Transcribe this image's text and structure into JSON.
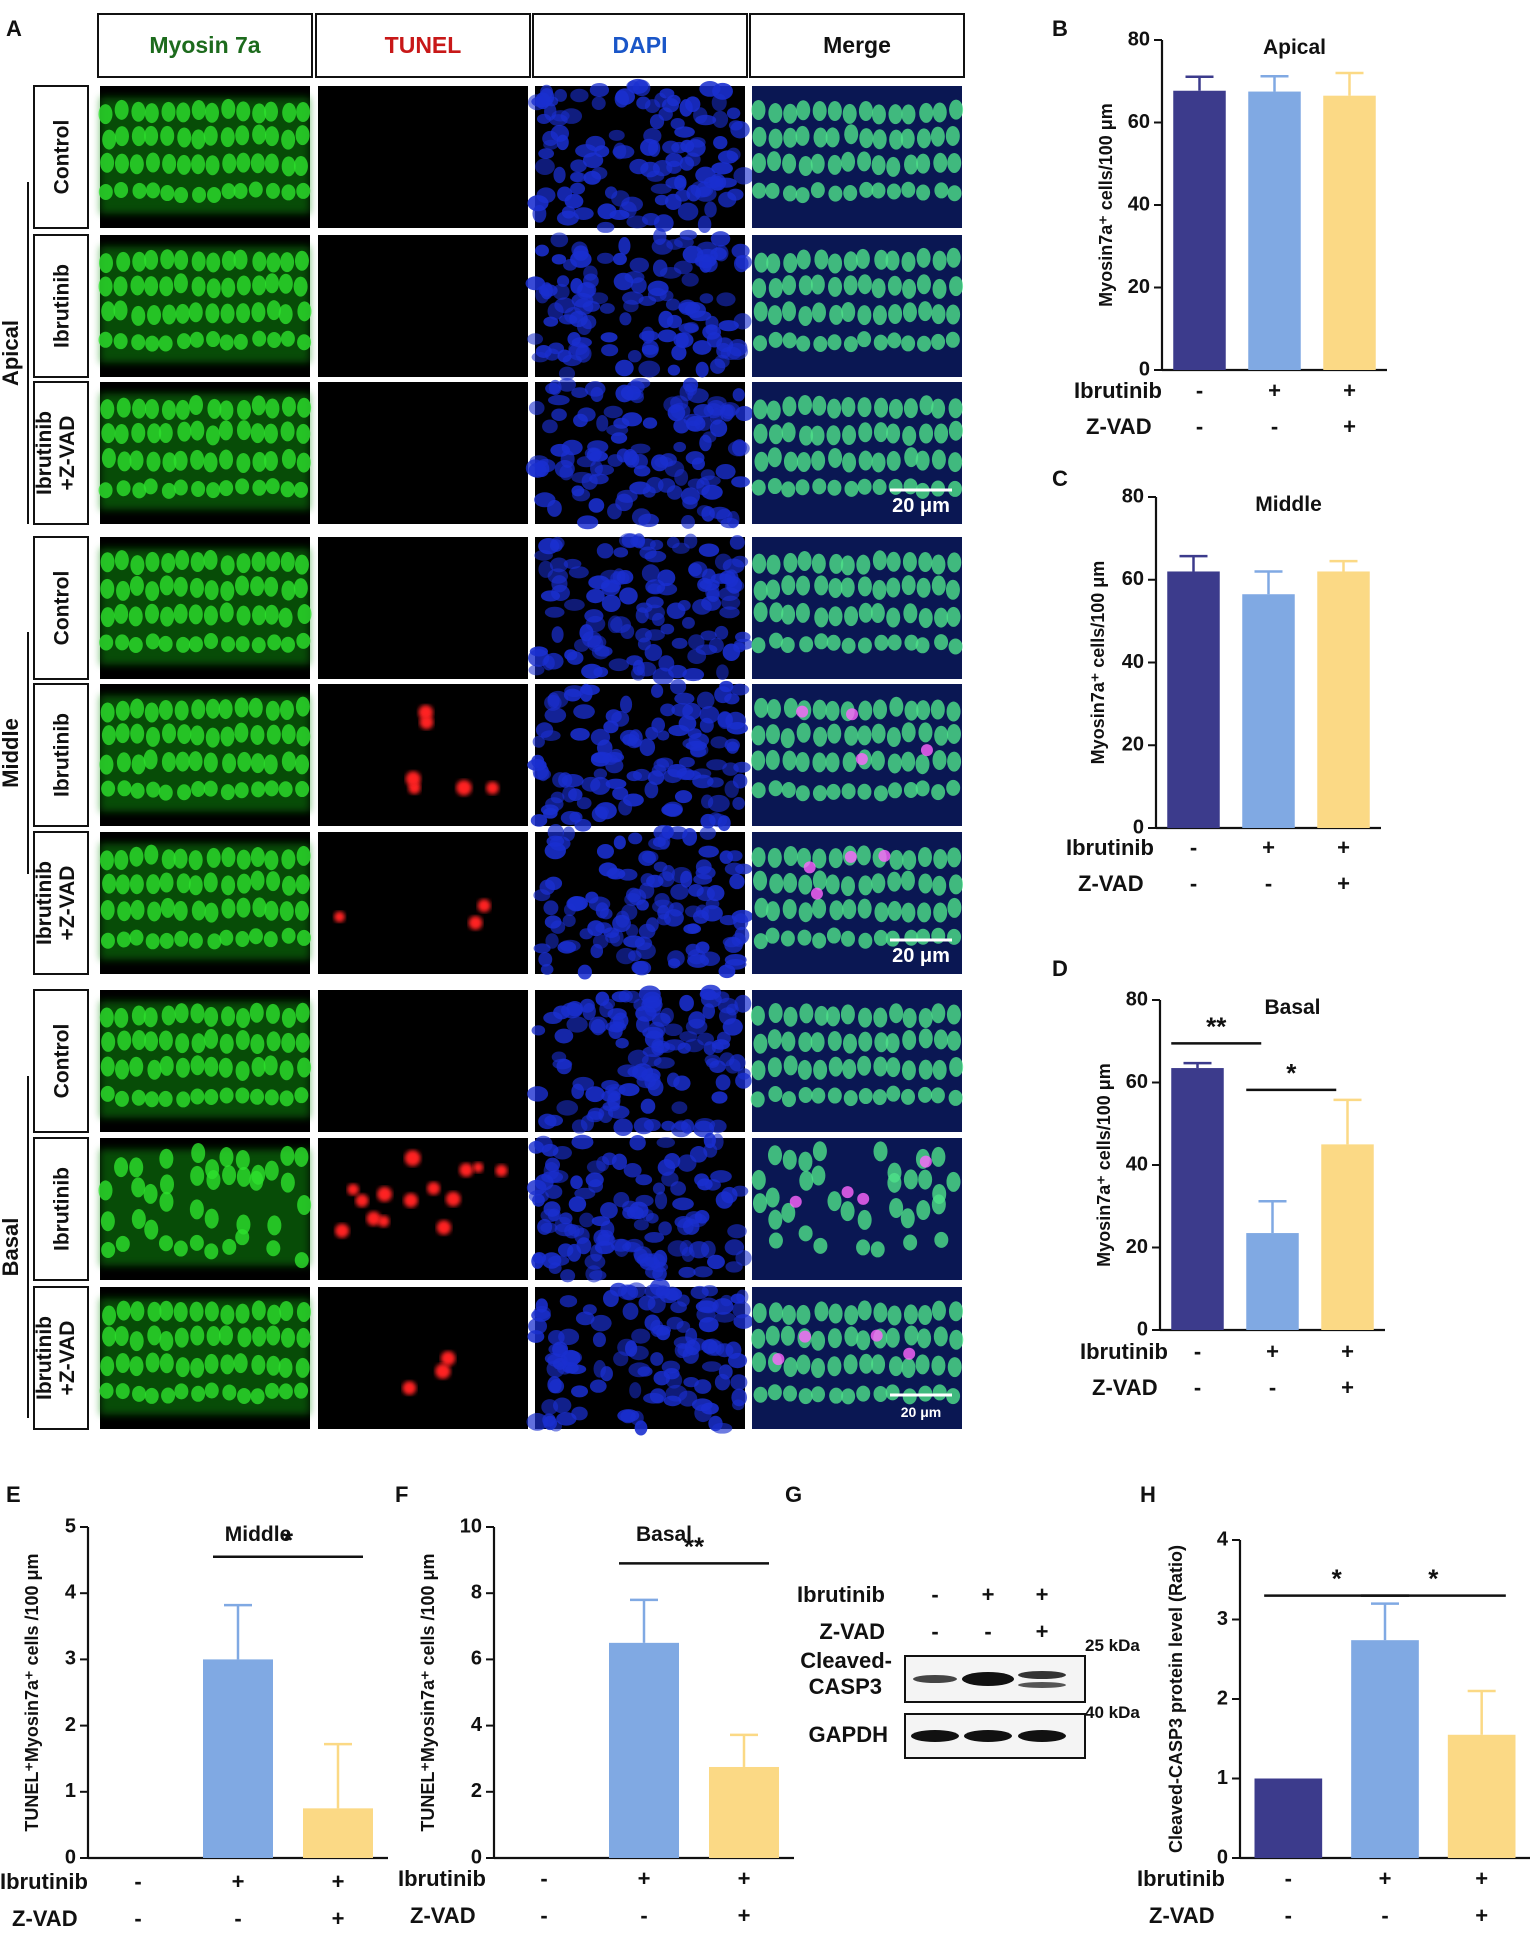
{
  "panel_letters": [
    "A",
    "B",
    "C",
    "D",
    "E",
    "F",
    "G",
    "H"
  ],
  "panelA": {
    "column_headers": [
      {
        "label": "Myosin 7a",
        "color": "#1d6b1d"
      },
      {
        "label": "TUNEL",
        "color": "#c81818"
      },
      {
        "label": "DAPI",
        "color": "#1a56c8"
      },
      {
        "label": "Merge",
        "color": "#111111"
      }
    ],
    "regions": [
      "Apical",
      "Middle",
      "Basal"
    ],
    "row_labels": [
      [
        "Control"
      ],
      [
        "Ibrutinib"
      ],
      [
        "Ibrutinib",
        "+Z-VAD"
      ],
      [
        "Control"
      ],
      [
        "Ibrutinib"
      ],
      [
        "Ibrutinib",
        "+Z-VAD"
      ],
      [
        "Control"
      ],
      [
        "Ibrutinib"
      ],
      [
        "Ibrutinib",
        "+Z-VAD"
      ]
    ],
    "scale_bars": [
      "20 μm",
      "20 μm",
      "20 μm"
    ],
    "tunel_positive_rows": [
      4,
      5,
      7,
      8
    ]
  },
  "treatment_rows": {
    "labels": [
      "Ibrutinib",
      "Z-VAD"
    ],
    "ibrutinib": [
      "-",
      "+",
      "+"
    ],
    "zvad": [
      "-",
      "-",
      "+"
    ]
  },
  "panelG": {
    "row_labels": [
      "Ibrutinib",
      "Z-VAD"
    ],
    "ibrutinib": [
      "-",
      "+",
      "+"
    ],
    "zvad": [
      "-",
      "-",
      "+"
    ],
    "bands": [
      "Cleaved-\nCASP3",
      "GAPDH"
    ],
    "markers": [
      "25 kDa",
      "40 kDa"
    ]
  },
  "colors": {
    "control": "#3c3b8c",
    "ibrutinib": "#80a9e3",
    "zvad": "#fbd985",
    "sig": "#111111"
  },
  "chart_data": [
    {
      "id": "B",
      "type": "bar",
      "title": "Apical",
      "ylabel": "Myosin7a⁺ cells/100 μm",
      "ylim": [
        0,
        80
      ],
      "yticks": [
        0,
        20,
        40,
        60,
        80
      ],
      "values": [
        67.7,
        67.5,
        66.5
      ],
      "errors": [
        3.4,
        3.7,
        5.5
      ],
      "sig": []
    },
    {
      "id": "C",
      "type": "bar",
      "title": "Middle",
      "ylabel": "Myosin7a⁺ cells/100 μm",
      "ylim": [
        0,
        80
      ],
      "yticks": [
        0,
        20,
        40,
        60,
        80
      ],
      "values": [
        62,
        56.5,
        62
      ],
      "errors": [
        3.7,
        5.5,
        2.5
      ],
      "sig": []
    },
    {
      "id": "D",
      "type": "bar",
      "title": "Basal",
      "ylabel": "Myosin7a⁺ cells/100 μm",
      "ylim": [
        0,
        80
      ],
      "yticks": [
        0,
        20,
        40,
        60,
        80
      ],
      "values": [
        63.5,
        23.5,
        45
      ],
      "errors": [
        1.2,
        7.7,
        10.8
      ],
      "sig": [
        {
          "from": 0,
          "to": 1,
          "label": "**",
          "y": 69.5
        },
        {
          "from": 1,
          "to": 2,
          "label": "*",
          "y": 58.2
        }
      ]
    },
    {
      "id": "E",
      "type": "bar",
      "title": "Middle",
      "ylabel": "TUNEL⁺Myosin7a⁺ cells /100 μm",
      "ylim": [
        0,
        5
      ],
      "yticks": [
        0,
        1,
        2,
        3,
        4,
        5
      ],
      "values": [
        0,
        3,
        0.75
      ],
      "errors": [
        0,
        0.82,
        0.97
      ],
      "sig": [
        {
          "from": 1,
          "to": 2,
          "label": "*",
          "y": 4.55
        }
      ]
    },
    {
      "id": "F",
      "type": "bar",
      "title": "Basal",
      "ylabel": "TUNEL⁺Myosin7a⁺ cells /100 μm",
      "ylim": [
        0,
        10
      ],
      "yticks": [
        0,
        2,
        4,
        6,
        8,
        10
      ],
      "values": [
        0,
        6.5,
        2.75
      ],
      "errors": [
        0,
        1.3,
        0.97
      ],
      "sig": [
        {
          "from": 1,
          "to": 2,
          "label": "**",
          "y": 8.9
        }
      ]
    },
    {
      "id": "H",
      "type": "bar",
      "title": "",
      "ylabel": "Cleaved-CASP3 protein level (Ratio)",
      "ylim": [
        0,
        4
      ],
      "yticks": [
        0,
        1,
        2,
        3,
        4
      ],
      "values": [
        1,
        2.74,
        1.55
      ],
      "errors": [
        0,
        0.46,
        0.55
      ],
      "sig": [
        {
          "from": 0,
          "to": 1,
          "label": "*",
          "y": 3.3
        },
        {
          "from": 1,
          "to": 2,
          "label": "*",
          "y": 3.3
        }
      ]
    }
  ]
}
